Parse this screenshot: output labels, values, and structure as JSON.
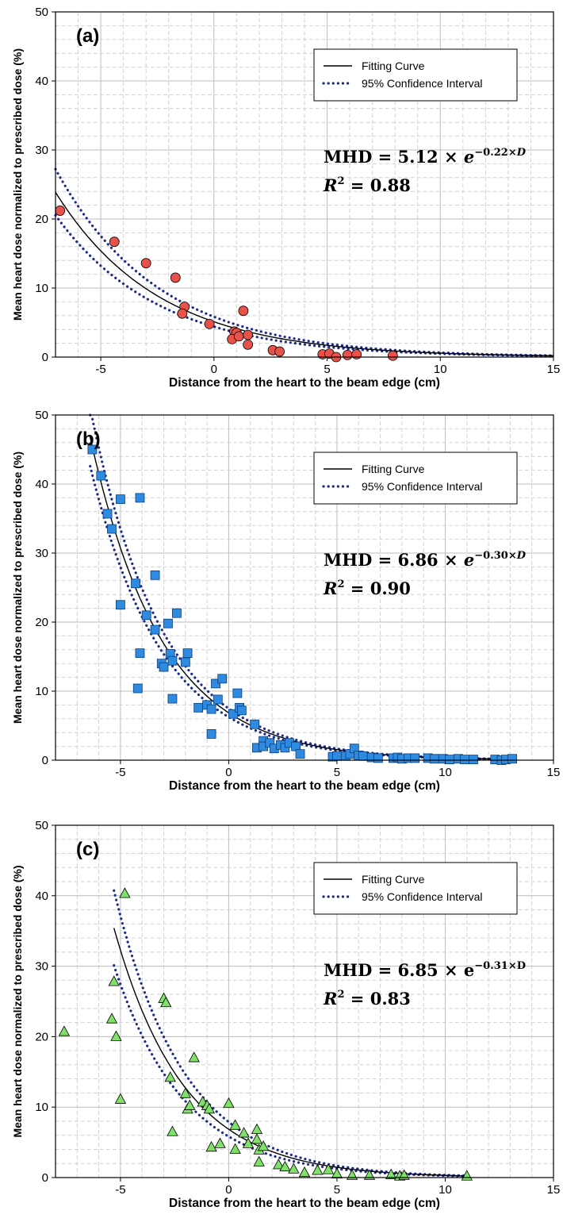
{
  "chart_data": [
    {
      "type": "scatter",
      "panel_label": "(a)",
      "marker": "circle",
      "marker_color": "#e8524a",
      "xlabel": "Distance from the heart to the beam edge (cm)",
      "ylabel": "Mean heart dose normalized to prescribed dose (%)",
      "xlim": [
        -7,
        15
      ],
      "ylim": [
        0,
        50
      ],
      "xticks": [
        -5,
        0,
        5,
        10,
        15
      ],
      "yticks": [
        0,
        10,
        20,
        30,
        40,
        50
      ],
      "grid": true,
      "legend": {
        "placement": "top-right",
        "entries": [
          "Fitting Curve",
          "95% Confidence Interval"
        ]
      },
      "equation": {
        "a": "5.12",
        "b": "0.22",
        "var": "D",
        "r2": "0.88"
      },
      "fit": {
        "a": 5.12,
        "b": 0.22,
        "x_range": [
          -7,
          15
        ],
        "ci_rel": 0.14
      },
      "points": [
        [
          -6.8,
          21.2
        ],
        [
          -4.4,
          16.7
        ],
        [
          -3.0,
          13.6
        ],
        [
          -1.7,
          11.5
        ],
        [
          -1.3,
          7.3
        ],
        [
          -1.4,
          6.3
        ],
        [
          -0.2,
          4.8
        ],
        [
          0.9,
          3.7
        ],
        [
          1.0,
          3.5
        ],
        [
          0.8,
          2.6
        ],
        [
          1.1,
          3.0
        ],
        [
          1.3,
          6.7
        ],
        [
          1.5,
          3.2
        ],
        [
          1.5,
          1.8
        ],
        [
          2.6,
          1.0
        ],
        [
          2.9,
          0.8
        ],
        [
          4.8,
          0.4
        ],
        [
          5.1,
          0.5
        ],
        [
          5.4,
          0.0
        ],
        [
          5.9,
          0.3
        ],
        [
          6.3,
          0.4
        ],
        [
          7.9,
          0.2
        ]
      ]
    },
    {
      "type": "scatter",
      "panel_label": "(b)",
      "marker": "square",
      "marker_color": "#2e8be0",
      "xlabel": "Distance from the heart to the beam edge (cm)",
      "ylabel": "Mean heart dose normalized to prescribed dose (%)",
      "xlim": [
        -8,
        15
      ],
      "ylim": [
        0,
        50
      ],
      "xticks": [
        -5,
        0,
        5,
        10,
        15
      ],
      "yticks": [
        0,
        10,
        20,
        30,
        40,
        50
      ],
      "grid": true,
      "legend": {
        "placement": "top-right",
        "entries": [
          "Fitting Curve",
          "95% Confidence Interval"
        ]
      },
      "equation": {
        "a": "6.86",
        "b": "0.30",
        "var": "D",
        "r2": "0.90"
      },
      "fit": {
        "a": 6.86,
        "b": 0.3,
        "x_range": [
          -6.4,
          13.2
        ],
        "ci_rel": 0.09
      },
      "points": [
        [
          -6.3,
          45.0
        ],
        [
          -5.9,
          41.2
        ],
        [
          -5.6,
          35.7
        ],
        [
          -5.4,
          33.5
        ],
        [
          -5.0,
          37.8
        ],
        [
          -4.1,
          38.0
        ],
        [
          -5.0,
          22.5
        ],
        [
          -4.3,
          25.6
        ],
        [
          -3.8,
          21.0
        ],
        [
          -3.4,
          26.8
        ],
        [
          -3.4,
          18.9
        ],
        [
          -3.1,
          14.0
        ],
        [
          -3.0,
          13.5
        ],
        [
          -4.1,
          15.5
        ],
        [
          -4.2,
          10.4
        ],
        [
          -2.8,
          19.8
        ],
        [
          -2.7,
          15.4
        ],
        [
          -2.6,
          14.4
        ],
        [
          -2.4,
          21.3
        ],
        [
          -2.6,
          8.9
        ],
        [
          -2.0,
          14.2
        ],
        [
          -1.9,
          15.5
        ],
        [
          -1.4,
          7.6
        ],
        [
          -1.0,
          8.0
        ],
        [
          -0.8,
          7.4
        ],
        [
          -0.8,
          3.8
        ],
        [
          -0.6,
          11.1
        ],
        [
          -0.5,
          8.8
        ],
        [
          -0.3,
          11.8
        ],
        [
          0.2,
          6.7
        ],
        [
          0.4,
          9.7
        ],
        [
          0.5,
          7.6
        ],
        [
          0.6,
          7.2
        ],
        [
          1.2,
          5.2
        ],
        [
          1.3,
          1.8
        ],
        [
          1.6,
          2.8
        ],
        [
          1.6,
          2.0
        ],
        [
          1.9,
          2.5
        ],
        [
          2.1,
          1.7
        ],
        [
          2.4,
          2.2
        ],
        [
          2.6,
          1.8
        ],
        [
          2.8,
          2.5
        ],
        [
          3.1,
          2.0
        ],
        [
          3.3,
          0.9
        ],
        [
          4.8,
          0.5
        ],
        [
          5.0,
          0.6
        ],
        [
          5.4,
          0.6
        ],
        [
          5.6,
          0.9
        ],
        [
          5.8,
          1.7
        ],
        [
          6.0,
          0.7
        ],
        [
          6.2,
          0.6
        ],
        [
          6.6,
          0.4
        ],
        [
          6.9,
          0.3
        ],
        [
          7.6,
          0.3
        ],
        [
          7.8,
          0.4
        ],
        [
          8.0,
          0.2
        ],
        [
          8.3,
          0.3
        ],
        [
          8.6,
          0.3
        ],
        [
          9.2,
          0.3
        ],
        [
          9.5,
          0.2
        ],
        [
          9.9,
          0.2
        ],
        [
          10.2,
          0.1
        ],
        [
          10.6,
          0.2
        ],
        [
          10.9,
          0.1
        ],
        [
          11.3,
          0.1
        ],
        [
          12.3,
          0.1
        ],
        [
          12.6,
          0.0
        ],
        [
          12.8,
          0.1
        ],
        [
          13.1,
          0.2
        ]
      ]
    },
    {
      "type": "scatter",
      "panel_label": "(c)",
      "marker": "triangle",
      "marker_color": "#7fe06a",
      "xlabel": "Distance from the heart to the beam edge (cm)",
      "ylabel": "Mean heart dose normalized to prescribed dose (%)",
      "xlim": [
        -8,
        15
      ],
      "ylim": [
        0,
        50
      ],
      "xticks": [
        -5,
        0,
        5,
        10,
        15
      ],
      "yticks": [
        0,
        10,
        20,
        30,
        40,
        50
      ],
      "grid": true,
      "legend": {
        "placement": "top-right",
        "entries": [
          "Fitting Curve",
          "95% Confidence Interval"
        ]
      },
      "equation": {
        "a": "6.85",
        "b": "0.31",
        "var": "D",
        "r2": "0.83",
        "upright": true
      },
      "fit": {
        "a": 6.85,
        "b": 0.31,
        "x_range": [
          -5.3,
          11.0
        ],
        "ci_rel": 0.15
      },
      "points": [
        [
          -7.6,
          20.7
        ],
        [
          -5.4,
          22.5
        ],
        [
          -5.3,
          27.8
        ],
        [
          -5.2,
          20.0
        ],
        [
          -5.0,
          11.1
        ],
        [
          -4.8,
          40.3
        ],
        [
          -3.0,
          25.4
        ],
        [
          -2.9,
          24.8
        ],
        [
          -2.7,
          14.2
        ],
        [
          -2.6,
          6.5
        ],
        [
          -2.0,
          11.9
        ],
        [
          -1.9,
          9.7
        ],
        [
          -1.8,
          10.2
        ],
        [
          -1.6,
          17.0
        ],
        [
          -1.2,
          10.7
        ],
        [
          -1.0,
          10.2
        ],
        [
          -0.9,
          9.7
        ],
        [
          -0.8,
          4.3
        ],
        [
          -0.4,
          4.8
        ],
        [
          0.0,
          10.5
        ],
        [
          0.3,
          7.4
        ],
        [
          0.3,
          4.0
        ],
        [
          0.7,
          6.3
        ],
        [
          0.9,
          4.8
        ],
        [
          1.3,
          6.8
        ],
        [
          1.3,
          5.4
        ],
        [
          1.4,
          3.9
        ],
        [
          1.4,
          2.2
        ],
        [
          1.6,
          4.4
        ],
        [
          2.3,
          1.8
        ],
        [
          2.6,
          1.5
        ],
        [
          3.0,
          1.2
        ],
        [
          3.5,
          0.7
        ],
        [
          4.1,
          1.0
        ],
        [
          4.6,
          1.1
        ],
        [
          5.0,
          0.5
        ],
        [
          5.7,
          0.3
        ],
        [
          6.5,
          0.3
        ],
        [
          7.5,
          0.4
        ],
        [
          7.9,
          0.2
        ],
        [
          8.1,
          0.3
        ],
        [
          11.0,
          0.2
        ]
      ]
    }
  ]
}
